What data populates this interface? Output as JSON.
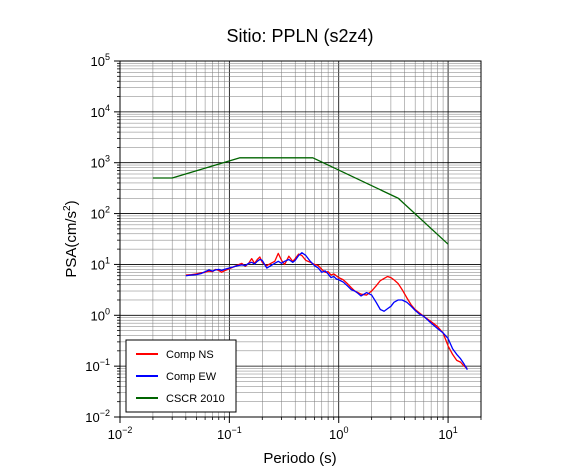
{
  "chart_data": {
    "type": "line",
    "title": "Sitio: PPLN (s2z4)",
    "xlabel": "Periodo (s)",
    "ylabel": "PSA(cm/s²)",
    "ylabel_base": "PSA(cm/s",
    "ylabel_sup": "2",
    "ylabel_end": ")",
    "xscale": "log",
    "yscale": "log",
    "xlim": [
      0.01,
      20
    ],
    "ylim": [
      0.01,
      100000
    ],
    "grid": true,
    "legend_position": "bottom-left",
    "x_ticks": [
      {
        "value": 0.01,
        "base": "10",
        "exp": "−2"
      },
      {
        "value": 0.1,
        "base": "10",
        "exp": "−1"
      },
      {
        "value": 1,
        "base": "10",
        "exp": "0"
      },
      {
        "value": 10,
        "base": "10",
        "exp": "1"
      }
    ],
    "y_ticks": [
      {
        "value": 0.01,
        "base": "10",
        "exp": "−2"
      },
      {
        "value": 0.1,
        "base": "10",
        "exp": "−1"
      },
      {
        "value": 1,
        "base": "10",
        "exp": "0"
      },
      {
        "value": 10,
        "base": "10",
        "exp": "1"
      },
      {
        "value": 100,
        "base": "10",
        "exp": "2"
      },
      {
        "value": 1000,
        "base": "10",
        "exp": "3"
      },
      {
        "value": 10000,
        "base": "10",
        "exp": "4"
      },
      {
        "value": 100000,
        "base": "10",
        "exp": "5"
      }
    ],
    "series": [
      {
        "name": "Comp NS",
        "color": "#ff0000",
        "points": [
          [
            0.04,
            6.2
          ],
          [
            0.045,
            6.3
          ],
          [
            0.05,
            6.5
          ],
          [
            0.055,
            6.8
          ],
          [
            0.06,
            7.0
          ],
          [
            0.065,
            7.4
          ],
          [
            0.07,
            7.2
          ],
          [
            0.075,
            8.0
          ],
          [
            0.08,
            7.6
          ],
          [
            0.085,
            7.0
          ],
          [
            0.09,
            7.5
          ],
          [
            0.1,
            8.2
          ],
          [
            0.11,
            9.0
          ],
          [
            0.12,
            9.8
          ],
          [
            0.13,
            10.5
          ],
          [
            0.14,
            9.2
          ],
          [
            0.15,
            10.5
          ],
          [
            0.16,
            13.0
          ],
          [
            0.17,
            10.5
          ],
          [
            0.18,
            12.5
          ],
          [
            0.19,
            14.0
          ],
          [
            0.2,
            11.0
          ],
          [
            0.21,
            10.0
          ],
          [
            0.22,
            9.5
          ],
          [
            0.24,
            10.5
          ],
          [
            0.26,
            11.5
          ],
          [
            0.28,
            16.5
          ],
          [
            0.3,
            12.0
          ],
          [
            0.32,
            10.0
          ],
          [
            0.35,
            14.5
          ],
          [
            0.38,
            11.5
          ],
          [
            0.4,
            13.0
          ],
          [
            0.43,
            16.0
          ],
          [
            0.46,
            15.0
          ],
          [
            0.5,
            12.0
          ],
          [
            0.55,
            11.0
          ],
          [
            0.6,
            10.0
          ],
          [
            0.65,
            9.5
          ],
          [
            0.7,
            8.0
          ],
          [
            0.75,
            7.0
          ],
          [
            0.8,
            7.2
          ],
          [
            0.85,
            6.2
          ],
          [
            0.9,
            6.5
          ],
          [
            0.95,
            6.0
          ],
          [
            1.0,
            5.5
          ],
          [
            1.1,
            5.0
          ],
          [
            1.2,
            4.2
          ],
          [
            1.3,
            3.5
          ],
          [
            1.4,
            3.0
          ],
          [
            1.5,
            2.8
          ],
          [
            1.6,
            2.6
          ],
          [
            1.8,
            2.5
          ],
          [
            2.0,
            3.0
          ],
          [
            2.2,
            3.8
          ],
          [
            2.4,
            4.8
          ],
          [
            2.6,
            5.3
          ],
          [
            2.8,
            5.8
          ],
          [
            3.0,
            5.5
          ],
          [
            3.2,
            5.0
          ],
          [
            3.5,
            4.2
          ],
          [
            3.8,
            3.2
          ],
          [
            4.2,
            2.2
          ],
          [
            4.6,
            1.6
          ],
          [
            5.0,
            1.3
          ],
          [
            5.5,
            1.1
          ],
          [
            6.0,
            0.95
          ],
          [
            7.0,
            0.75
          ],
          [
            8.0,
            0.6
          ],
          [
            9.0,
            0.45
          ],
          [
            10.0,
            0.25
          ],
          [
            11.0,
            0.17
          ],
          [
            12.0,
            0.13
          ],
          [
            13.0,
            0.12
          ],
          [
            14.0,
            0.1
          ],
          [
            15.0,
            0.09
          ]
        ]
      },
      {
        "name": "Comp EW",
        "color": "#0000ff",
        "points": [
          [
            0.04,
            6.0
          ],
          [
            0.045,
            6.2
          ],
          [
            0.05,
            6.3
          ],
          [
            0.055,
            6.6
          ],
          [
            0.06,
            7.2
          ],
          [
            0.065,
            7.8
          ],
          [
            0.07,
            7.4
          ],
          [
            0.075,
            7.8
          ],
          [
            0.08,
            8.0
          ],
          [
            0.085,
            7.6
          ],
          [
            0.09,
            8.0
          ],
          [
            0.1,
            8.5
          ],
          [
            0.11,
            9.0
          ],
          [
            0.12,
            9.5
          ],
          [
            0.13,
            9.8
          ],
          [
            0.14,
            9.5
          ],
          [
            0.15,
            10.5
          ],
          [
            0.16,
            11.0
          ],
          [
            0.17,
            10.2
          ],
          [
            0.18,
            11.5
          ],
          [
            0.19,
            12.5
          ],
          [
            0.2,
            12.0
          ],
          [
            0.21,
            10.0
          ],
          [
            0.22,
            8.5
          ],
          [
            0.24,
            9.5
          ],
          [
            0.26,
            10.5
          ],
          [
            0.28,
            11.5
          ],
          [
            0.3,
            10.5
          ],
          [
            0.32,
            11.5
          ],
          [
            0.35,
            12.5
          ],
          [
            0.38,
            11.0
          ],
          [
            0.4,
            12.0
          ],
          [
            0.43,
            15.0
          ],
          [
            0.46,
            17.0
          ],
          [
            0.5,
            15.0
          ],
          [
            0.55,
            11.5
          ],
          [
            0.6,
            9.5
          ],
          [
            0.65,
            8.5
          ],
          [
            0.7,
            7.0
          ],
          [
            0.75,
            7.5
          ],
          [
            0.8,
            6.5
          ],
          [
            0.85,
            5.5
          ],
          [
            0.9,
            5.8
          ],
          [
            0.95,
            5.2
          ],
          [
            1.0,
            5.0
          ],
          [
            1.1,
            4.5
          ],
          [
            1.2,
            3.8
          ],
          [
            1.3,
            3.2
          ],
          [
            1.4,
            3.0
          ],
          [
            1.5,
            2.7
          ],
          [
            1.6,
            2.4
          ],
          [
            1.8,
            2.8
          ],
          [
            2.0,
            2.5
          ],
          [
            2.2,
            1.8
          ],
          [
            2.4,
            1.3
          ],
          [
            2.6,
            1.2
          ],
          [
            2.8,
            1.35
          ],
          [
            3.0,
            1.5
          ],
          [
            3.2,
            1.8
          ],
          [
            3.5,
            2.0
          ],
          [
            3.8,
            2.0
          ],
          [
            4.2,
            1.8
          ],
          [
            4.6,
            1.5
          ],
          [
            5.0,
            1.25
          ],
          [
            5.5,
            1.05
          ],
          [
            6.0,
            0.95
          ],
          [
            7.0,
            0.7
          ],
          [
            8.0,
            0.55
          ],
          [
            9.0,
            0.45
          ],
          [
            10.0,
            0.35
          ],
          [
            11.0,
            0.22
          ],
          [
            12.0,
            0.17
          ],
          [
            13.0,
            0.14
          ],
          [
            14.0,
            0.11
          ],
          [
            15.0,
            0.085
          ]
        ]
      },
      {
        "name": "CSCR 2010",
        "color": "#006400",
        "points": [
          [
            0.02,
            500
          ],
          [
            0.03,
            500
          ],
          [
            0.125,
            1250
          ],
          [
            0.58,
            1250
          ],
          [
            3.5,
            200
          ],
          [
            10.0,
            25
          ]
        ]
      }
    ]
  }
}
